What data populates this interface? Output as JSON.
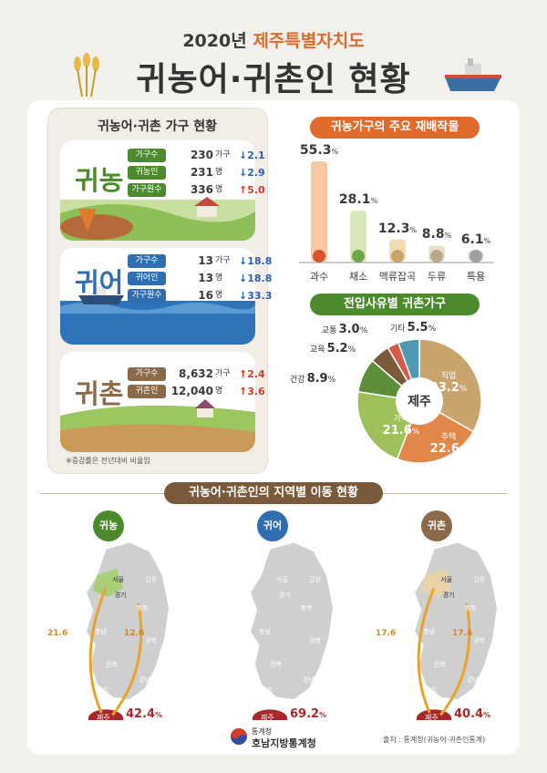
{
  "header": {
    "year_prefix": "2020년",
    "region": "제주특별자치도",
    "title": "귀농어·귀촌인 현황"
  },
  "household_panel": {
    "title": "귀농어·귀촌 가구 현황",
    "note": "※증감률은 전년대비 비율임",
    "farming": {
      "name": "귀농",
      "rows": [
        {
          "label": "가구수",
          "value": "230",
          "unit": "가구",
          "change": "2.1",
          "dir": "down"
        },
        {
          "label": "귀농인",
          "value": "231",
          "unit": "명",
          "change": "2.9",
          "dir": "down"
        },
        {
          "label": "가구원수",
          "value": "336",
          "unit": "명",
          "change": "5.0",
          "dir": "up"
        }
      ]
    },
    "fishing": {
      "name": "귀어",
      "rows": [
        {
          "label": "가구수",
          "value": "13",
          "unit": "가구",
          "change": "18.8",
          "dir": "down"
        },
        {
          "label": "귀어인",
          "value": "13",
          "unit": "명",
          "change": "18.8",
          "dir": "down"
        },
        {
          "label": "가구원수",
          "value": "16",
          "unit": "명",
          "change": "33.3",
          "dir": "down"
        }
      ]
    },
    "rural": {
      "name": "귀촌",
      "rows": [
        {
          "label": "가구수",
          "value": "8,632",
          "unit": "가구",
          "change": "2.4",
          "dir": "up"
        },
        {
          "label": "귀촌인",
          "value": "12,040",
          "unit": "명",
          "change": "3.6",
          "dir": "up"
        }
      ]
    }
  },
  "crops": {
    "title": "귀농가구의 주요 재배작물",
    "unit": "%",
    "items": [
      {
        "name": "과수",
        "value": 55.3,
        "label": "55.3"
      },
      {
        "name": "채소",
        "value": 28.1,
        "label": "28.1"
      },
      {
        "name": "맥류잡곡",
        "value": 12.3,
        "label": "12.3"
      },
      {
        "name": "두류",
        "value": 8.8,
        "label": "8.8"
      },
      {
        "name": "특용",
        "value": 6.1,
        "label": "6.1"
      }
    ]
  },
  "chart_data": {
    "type": "pie",
    "title": "전입사유별 귀촌가구",
    "center_label": "제주",
    "slices": [
      {
        "name": "직업",
        "value": 33.2,
        "label": "33.2",
        "color": "#c9a46d"
      },
      {
        "name": "주택",
        "value": 22.6,
        "label": "22.6",
        "color": "#e0874a"
      },
      {
        "name": "가족",
        "value": 21.6,
        "label": "21.6",
        "color": "#9fbf5a"
      },
      {
        "name": "건강",
        "value": 8.9,
        "label": "8.9",
        "color": "#5e8e3a"
      },
      {
        "name": "교육",
        "value": 5.2,
        "label": "5.2",
        "color": "#7a5a3a"
      },
      {
        "name": "교통",
        "value": 3.0,
        "label": "3.0",
        "color": "#d45a4a"
      },
      {
        "name": "기타",
        "value": 5.5,
        "label": "5.5",
        "color": "#4f9ab0"
      }
    ]
  },
  "migration": {
    "title": "귀농어·귀촌인의 지역별 이동 현황",
    "maps": [
      {
        "name": "귀농",
        "color": "#4d8a2e",
        "from_seoul": "21.6",
        "from_gyeongbuk": "12.6",
        "jeju": "42.4"
      },
      {
        "name": "귀어",
        "color": "#2f6fb0",
        "from_seoul": "",
        "from_gyeongbuk": "",
        "jeju": "69.2"
      },
      {
        "name": "귀촌",
        "color": "#8a6a48",
        "from_seoul": "17.6",
        "from_gyeongbuk": "17.4",
        "jeju": "40.4"
      }
    ],
    "regions": [
      "서울",
      "경기",
      "강원",
      "충북",
      "충남",
      "경북",
      "전북",
      "경남",
      "부산",
      "광주",
      "전남"
    ],
    "jeju_label": "제주",
    "pct": "%"
  },
  "footer": {
    "org1": "통계청",
    "org2": "호남지방통계청",
    "source": "출처 : 통계청(귀농어·귀촌인통계)"
  },
  "colors": {
    "orange": "#e06a2c",
    "green": "#4d8a2e",
    "blue": "#2f6fb0",
    "brown": "#8a6a48"
  },
  "icons": [
    "wheat-icon",
    "ship-icon",
    "government-logo-icon",
    "down-arrow-icon",
    "up-arrow-icon"
  ]
}
